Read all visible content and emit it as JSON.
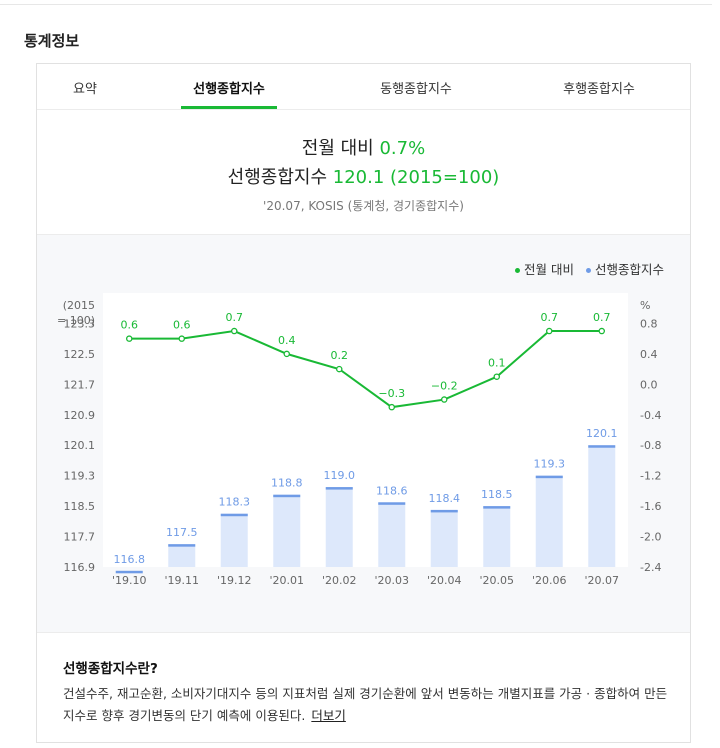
{
  "section_title": "통계정보",
  "tabs": [
    {
      "label": "요약"
    },
    {
      "label": "선행종합지수"
    },
    {
      "label": "동행종합지수"
    },
    {
      "label": "후행종합지수"
    }
  ],
  "summary": {
    "mom_label": "전월 대비",
    "mom_value": "0.7%",
    "index_label": "선행종합지수",
    "index_value": "120.1 (2015=100)",
    "source": "'20.07, KOSIS (통계청, 경기종합지수)"
  },
  "legend": [
    {
      "label": "전월 대비",
      "color": "#19b935"
    },
    {
      "label": "선행종합지수",
      "color": "#6f9be6"
    }
  ],
  "chart_data": {
    "type": "bar",
    "categories": [
      "'19.10",
      "'19.11",
      "'19.12",
      "'20.01",
      "'20.02",
      "'20.03",
      "'20.04",
      "'20.05",
      "'20.06",
      "'20.07"
    ],
    "series": [
      {
        "name": "선행종합지수",
        "type": "bar",
        "axis": "left",
        "color": "#6f9be6",
        "values": [
          116.8,
          117.5,
          118.3,
          118.8,
          119.0,
          118.6,
          118.4,
          118.5,
          119.3,
          120.1
        ]
      },
      {
        "name": "전월 대비",
        "type": "line",
        "axis": "right",
        "color": "#19b935",
        "values": [
          0.6,
          0.6,
          0.7,
          0.4,
          0.2,
          -0.3,
          -0.2,
          0.1,
          0.7,
          0.7
        ]
      }
    ],
    "left_axis": {
      "title_line1": "(2015",
      "title_line2": "= 100)",
      "ticks": [
        "123.3",
        "122.5",
        "121.7",
        "120.9",
        "120.1",
        "119.3",
        "118.5",
        "117.7",
        "116.9"
      ],
      "range": [
        116.9,
        124.1
      ]
    },
    "right_axis": {
      "title": "%",
      "ticks": [
        "0.8",
        "0.4",
        "0.0",
        "-0.4",
        "-0.8",
        "-1.2",
        "-1.6",
        "-2.0",
        "-2.4"
      ],
      "range": [
        -2.4,
        1.2
      ]
    },
    "left_labels": [
      116.8,
      117.5,
      118.3,
      118.8,
      119.0,
      118.6,
      118.4,
      118.5,
      119.3,
      120.1
    ],
    "right_labels": [
      0.6,
      0.6,
      0.7,
      0.4,
      0.2,
      -0.3,
      -0.2,
      0.1,
      0.7,
      0.7
    ],
    "left_label_strings": [
      "116.8",
      "117.5",
      "118.3",
      "118.8",
      "119.0",
      "118.6",
      "118.4",
      "118.5",
      "119.3",
      "120.1"
    ],
    "right_label_strings": [
      "0.6",
      "0.6",
      "0.7",
      "0.4",
      "0.2",
      "−0.3",
      "−0.2",
      "0.1",
      "0.7",
      "0.7"
    ]
  },
  "description": {
    "title": "선행종합지수란?",
    "body": "건설수주, 재고순환, 소비자기대지수 등의 지표처럼 실제 경기순환에 앞서 변동하는 개별지표를 가공 · 종합하여 만든 지수로 향후 경기변동의 단기 예측에 이용된다.",
    "more_label": "더보기"
  }
}
